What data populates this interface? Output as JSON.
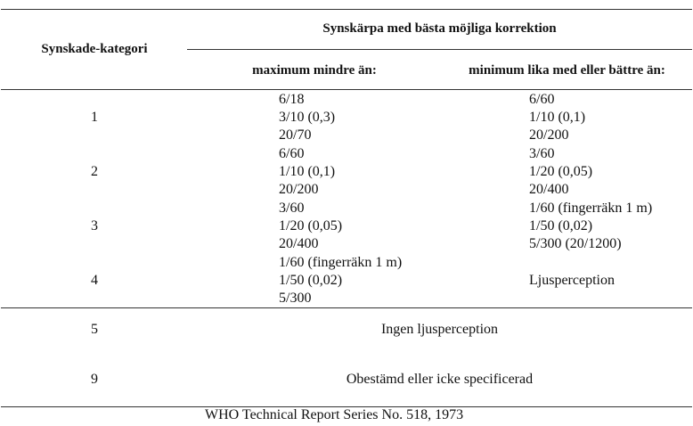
{
  "table": {
    "header": {
      "category_label": "Synskade-kategori",
      "group_label": "Synskärpa med bästa möjliga korrektion",
      "col_max_label": "maximum mindre än:",
      "col_min_label": "minimum lika med eller bättre än:"
    },
    "rows": [
      {
        "category": "1",
        "max": [
          "6/18",
          "3/10 (0,3)",
          "20/70"
        ],
        "min": [
          "6/60",
          "1/10 (0,1)",
          "20/200"
        ]
      },
      {
        "category": "2",
        "max": [
          "6/60",
          "1/10 (0,1)",
          "20/200"
        ],
        "min": [
          "3/60",
          "1/20 (0,05)",
          "20/400"
        ]
      },
      {
        "category": "3",
        "max": [
          "3/60",
          "1/20 (0,05)",
          "20/400"
        ],
        "min": [
          "1/60 (fingerräkn 1 m)",
          "1/50 (0,02)",
          "5/300 (20/1200)"
        ]
      },
      {
        "category": "4",
        "max": [
          "1/60 (fingerräkn 1 m)",
          "1/50 (0,02)",
          "5/300"
        ],
        "min": [
          "Ljusperception"
        ]
      },
      {
        "category": "5",
        "span": "Ingen ljusperception"
      },
      {
        "category": "9",
        "span": "Obestämd eller icke specificerad"
      }
    ],
    "source": "WHO Technical Report Series No. 518, 1973"
  }
}
